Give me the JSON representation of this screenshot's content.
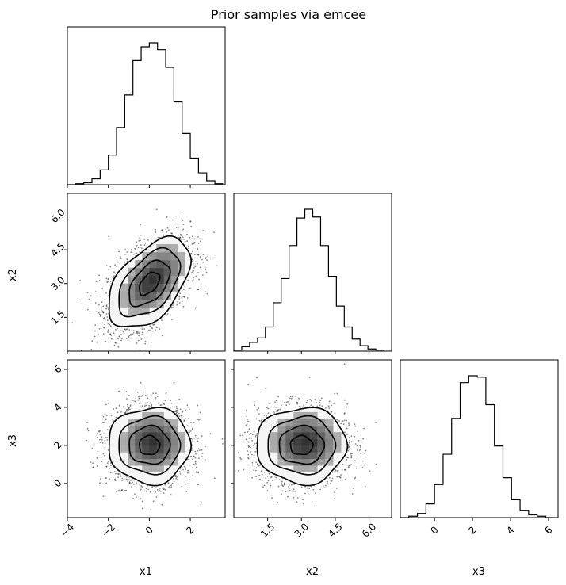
{
  "title": "Prior samples via emcee",
  "colors": {
    "ink": "#000000",
    "background": "#ffffff",
    "cloud": "#222222",
    "contour_fill": "#f5f5f5"
  },
  "chart_data": {
    "type": "corner",
    "title": "Prior samples via emcee",
    "variables": [
      {
        "label": "x1",
        "range": [
          -4,
          3.7
        ],
        "ticks": [
          -4,
          -2,
          0,
          2
        ],
        "tick_labels": [
          "−4",
          "−2",
          "0",
          "2"
        ],
        "mean": 0.0,
        "sd": 1.0
      },
      {
        "label": "x2",
        "range": [
          0.0,
          7.0
        ],
        "ticks": [
          1.5,
          3.0,
          4.5,
          6.0
        ],
        "tick_labels": [
          "1.5",
          "3.0",
          "4.5",
          "6.0"
        ],
        "mean": 3.0,
        "sd": 1.0
      },
      {
        "label": "x3",
        "range": [
          -1.8,
          6.5
        ],
        "ticks": [
          0,
          2,
          4,
          6
        ],
        "tick_labels": [
          "0",
          "2",
          "4",
          "6"
        ],
        "mean": 2.0,
        "sd": 1.0
      }
    ],
    "histograms": [
      {
        "variable": "x1",
        "bin_edges": [
          -4,
          -3.6,
          -3.2,
          -2.8,
          -2.4,
          -2.0,
          -1.6,
          -1.2,
          -0.8,
          -0.4,
          0.0,
          0.4,
          0.8,
          1.2,
          1.6,
          2.0,
          2.4,
          2.8,
          3.2,
          3.6
        ],
        "counts": [
          0,
          1,
          2,
          6,
          15,
          30,
          58,
          91,
          126,
          140,
          144,
          137,
          119,
          84,
          52,
          27,
          12,
          4,
          1
        ]
      },
      {
        "variable": "x2",
        "bin_edges": [
          0,
          0.35,
          0.7,
          1.05,
          1.4,
          1.75,
          2.1,
          2.45,
          2.8,
          3.15,
          3.5,
          3.85,
          4.2,
          4.55,
          4.9,
          5.25,
          5.6,
          5.95,
          6.3,
          6.65
        ],
        "counts": [
          1,
          4,
          8,
          12,
          22,
          44,
          66,
          96,
          121,
          129,
          122,
          96,
          68,
          41,
          22,
          11,
          5,
          2,
          1
        ]
      },
      {
        "variable": "x3",
        "bin_edges": [
          -1.8,
          -1.35,
          -0.9,
          -0.45,
          0.0,
          0.45,
          0.9,
          1.35,
          1.8,
          2.25,
          2.7,
          3.15,
          3.6,
          4.05,
          4.5,
          4.95,
          5.4,
          5.85,
          6.3
        ],
        "counts": [
          0,
          1,
          3,
          10,
          24,
          46,
          72,
          98,
          103,
          102,
          82,
          52,
          29,
          13,
          5,
          2,
          1,
          0
        ]
      }
    ],
    "pairs": [
      {
        "x": "x1",
        "y": "x2",
        "correlation": 0.5,
        "x_mean": 0.0,
        "y_mean": 3.0,
        "x_sd": 1.0,
        "y_sd": 1.0
      },
      {
        "x": "x1",
        "y": "x3",
        "correlation": 0.0,
        "x_mean": 0.0,
        "y_mean": 2.0,
        "x_sd": 1.0,
        "y_sd": 1.0
      },
      {
        "x": "x2",
        "y": "x3",
        "correlation": 0.0,
        "x_mean": 3.0,
        "y_mean": 2.0,
        "x_sd": 1.0,
        "y_sd": 1.0
      }
    ],
    "contour_levels_sigma": [
      0.5,
      1.0,
      1.5,
      2.0
    ],
    "grid": false,
    "legend": "none"
  }
}
